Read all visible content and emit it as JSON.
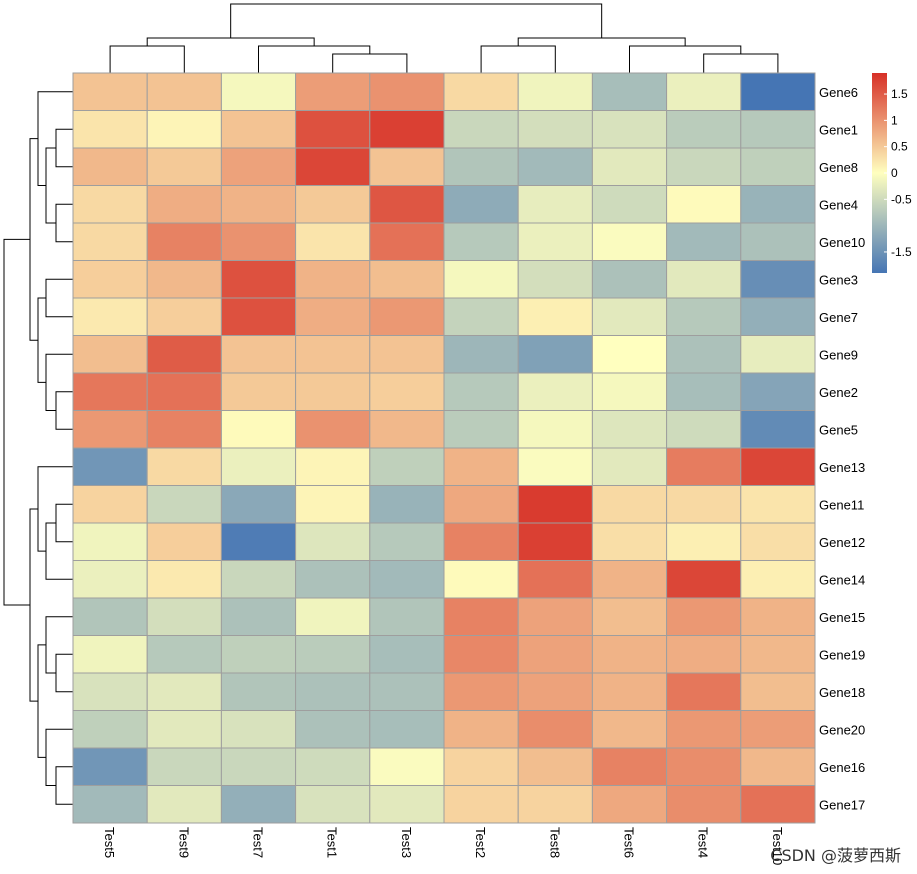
{
  "chart_data": {
    "type": "heatmap",
    "title": "",
    "rows": [
      "Gene6",
      "Gene1",
      "Gene8",
      "Gene4",
      "Gene10",
      "Gene3",
      "Gene7",
      "Gene9",
      "Gene2",
      "Gene5",
      "Gene13",
      "Gene11",
      "Gene12",
      "Gene14",
      "Gene15",
      "Gene19",
      "Gene18",
      "Gene20",
      "Gene16",
      "Gene17"
    ],
    "columns": [
      "Test5",
      "Test9",
      "Test7",
      "Test1",
      "Test3",
      "Test2",
      "Test8",
      "Test6",
      "Test4",
      "Test10"
    ],
    "values": [
      [
        0.55,
        0.55,
        -0.1,
        0.9,
        1.0,
        0.35,
        -0.15,
        -0.9,
        -0.2,
        -1.9
      ],
      [
        0.25,
        0.1,
        0.55,
        1.6,
        1.75,
        -0.55,
        -0.45,
        -0.4,
        -0.7,
        -0.75
      ],
      [
        0.65,
        0.5,
        0.85,
        1.7,
        0.55,
        -0.8,
        -0.95,
        -0.3,
        -0.55,
        -0.65
      ],
      [
        0.35,
        0.75,
        0.7,
        0.5,
        1.55,
        -1.15,
        -0.25,
        -0.5,
        0.05,
        -1.05
      ],
      [
        0.35,
        1.15,
        1.0,
        0.25,
        1.3,
        -0.75,
        -0.2,
        -0.05,
        -0.95,
        -0.85
      ],
      [
        0.45,
        0.65,
        1.6,
        0.7,
        0.6,
        -0.1,
        -0.45,
        -0.85,
        -0.3,
        -1.55
      ],
      [
        0.2,
        0.45,
        1.6,
        0.75,
        0.95,
        -0.6,
        0.15,
        -0.3,
        -0.75,
        -1.1
      ],
      [
        0.6,
        1.5,
        0.55,
        0.55,
        0.55,
        -1.0,
        -1.3,
        0.0,
        -0.85,
        -0.25
      ],
      [
        1.25,
        1.3,
        0.5,
        0.5,
        0.45,
        -0.75,
        -0.2,
        -0.1,
        -0.9,
        -1.25
      ],
      [
        0.95,
        1.15,
        0.05,
        1.0,
        0.65,
        -0.7,
        -0.1,
        -0.35,
        -0.5,
        -1.6
      ],
      [
        -1.45,
        0.35,
        -0.2,
        0.1,
        -0.65,
        0.7,
        -0.05,
        -0.3,
        1.2,
        1.7
      ],
      [
        0.4,
        -0.55,
        -1.2,
        0.1,
        -1.05,
        0.8,
        1.8,
        0.35,
        0.35,
        0.25
      ],
      [
        -0.15,
        0.45,
        -1.8,
        -0.35,
        -0.75,
        1.15,
        1.75,
        0.3,
        0.15,
        0.3
      ],
      [
        -0.2,
        0.2,
        -0.55,
        -0.85,
        -0.95,
        0.05,
        1.3,
        0.7,
        1.7,
        0.15
      ],
      [
        -0.8,
        -0.45,
        -0.85,
        -0.15,
        -0.8,
        1.15,
        0.85,
        0.6,
        0.95,
        0.7
      ],
      [
        -0.15,
        -0.75,
        -0.65,
        -0.7,
        -0.9,
        1.1,
        0.85,
        0.7,
        0.75,
        0.65
      ],
      [
        -0.4,
        -0.3,
        -0.8,
        -0.85,
        -0.85,
        0.95,
        0.85,
        0.7,
        1.25,
        0.6
      ],
      [
        -0.65,
        -0.3,
        -0.4,
        -0.85,
        -0.9,
        0.7,
        1.05,
        0.65,
        0.95,
        0.9
      ],
      [
        -1.45,
        -0.55,
        -0.55,
        -0.5,
        -0.05,
        0.4,
        0.6,
        1.15,
        1.05,
        0.65
      ],
      [
        -0.95,
        -0.3,
        -1.1,
        -0.4,
        -0.3,
        0.4,
        0.4,
        0.8,
        1.05,
        1.3
      ]
    ],
    "color_scale": {
      "range": [
        -1.9,
        1.9
      ],
      "low": "#4575b4",
      "mid": "#ffffbf",
      "high": "#d73027",
      "ticks": [
        1.5,
        1,
        0.5,
        0,
        -0.5,
        -1.5
      ],
      "tick_labels": [
        "1.5",
        "1",
        "0.5",
        "0",
        "-0.5",
        "-1.5"
      ]
    },
    "row_dendrogram": true,
    "column_dendrogram": true
  },
  "watermark": "CSDN @菠萝西斯"
}
